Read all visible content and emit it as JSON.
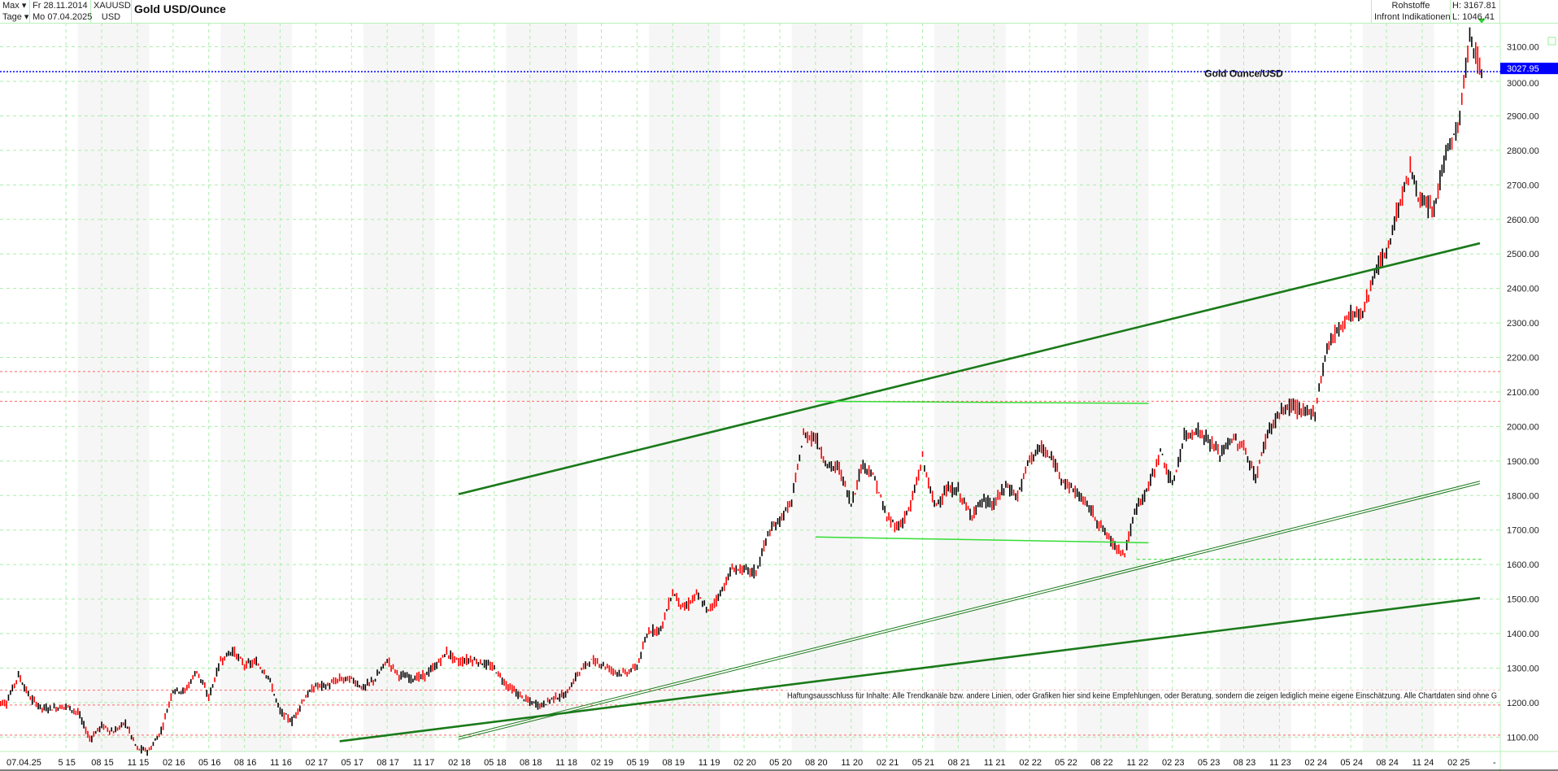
{
  "header": {
    "range_select": "Max ▾",
    "interval_select": "Tage ▾",
    "start_date": "Fr 28.11.2014",
    "end_date": "Mo 07.04.2025",
    "symbol": "XAUUSD",
    "currency": "USD",
    "title": "Gold USD/Ounce",
    "category": "Rohstoffe",
    "source": "Infront Indikationen",
    "high": "H: 3167.81",
    "low": "L: 1046.41"
  },
  "colors": {
    "up": "#000000",
    "down": "#ff0000",
    "grid": "#aaeeaa",
    "trend": "#1a7a1a",
    "level": "#33dd33",
    "resistance": "#ff6666",
    "last_price": "#0000ff"
  },
  "chart_data": {
    "type": "bar",
    "title": "Gold USD/Ounce",
    "xlabel": "",
    "ylabel": "",
    "ylim": [
      1050,
      3180
    ],
    "grid": true,
    "last_price": {
      "value": 3027.95,
      "label": "3027.95"
    },
    "annotation": {
      "text": "Gold Ounce/USD",
      "date": "2023-08",
      "price": 3022
    },
    "disclaimer": "Haftungsausschluss für Inhalte: Alle Trendkanäle bzw. andere Linien, oder Grafiken hier sind keine Empfehlungen, oder Beratung, sondern die zeigen lediglich meine eigene Einschätzung. Alle Chartdaten sind ohne G",
    "y_ticks": [
      "1100.00",
      "1200.00",
      "1300.00",
      "1400.00",
      "1500.00",
      "1600.00",
      "1700.00",
      "1800.00",
      "1900.00",
      "2000.00",
      "2100.00",
      "2200.00",
      "2300.00",
      "2400.00",
      "2500.00",
      "2600.00",
      "2700.00",
      "2800.00",
      "2900.00",
      "3000.00",
      "3100.00"
    ],
    "x_first_label": "07.04.25",
    "x_ticks": [
      "5 15",
      "08 15",
      "11 15",
      "02 16",
      "05 16",
      "08 16",
      "11 16",
      "02 17",
      "05 17",
      "08 17",
      "11 17",
      "02 18",
      "05 18",
      "08 18",
      "11 18",
      "02 19",
      "05 19",
      "08 19",
      "11 19",
      "02 20",
      "05 20",
      "08 20",
      "11 20",
      "02 21",
      "05 21",
      "08 21",
      "11 21",
      "02 22",
      "05 22",
      "08 22",
      "11 22",
      "02 23",
      "05 23",
      "08 23",
      "11 23",
      "02 24",
      "05 24",
      "08 24",
      "11 24",
      "02 25"
    ],
    "x_last_label": "-",
    "start_month": "2014-12",
    "monthly_close": [
      1200,
      1280,
      1213,
      1183,
      1184,
      1190,
      1172,
      1095,
      1133,
      1115,
      1142,
      1065,
      1061,
      1118,
      1238,
      1233,
      1293,
      1215,
      1322,
      1351,
      1309,
      1316,
      1277,
      1173,
      1146,
      1211,
      1249,
      1249,
      1268,
      1268,
      1242,
      1269,
      1322,
      1280,
      1271,
      1275,
      1303,
      1345,
      1318,
      1325,
      1315,
      1299,
      1253,
      1224,
      1201,
      1192,
      1215,
      1222,
      1282,
      1321,
      1313,
      1292,
      1284,
      1305,
      1409,
      1413,
      1520,
      1472,
      1513,
      1464,
      1517,
      1587,
      1585,
      1577,
      1687,
      1730,
      1781,
      1975,
      1968,
      1886,
      1879,
      1776,
      1895,
      1847,
      1734,
      1708,
      1769,
      1907,
      1770,
      1814,
      1814,
      1743,
      1783,
      1774,
      1829,
      1797,
      1909,
      1937,
      1897,
      1837,
      1807,
      1766,
      1711,
      1660,
      1633,
      1768,
      1824,
      1928,
      1827,
      1969,
      1990,
      1962,
      1919,
      1965,
      1940,
      1849,
      1983,
      2036,
      2063,
      2039,
      2044,
      2230,
      2286,
      2327,
      2326,
      2447,
      2503,
      2635,
      2744,
      2643,
      2625,
      2798,
      2858,
      3124,
      3028
    ],
    "trendlines": [
      {
        "style": "thick",
        "from": [
          "2018-02",
          1804
        ],
        "to": [
          "2025-10",
          2583
        ]
      },
      {
        "style": "double",
        "from": [
          "2018-02",
          1097
        ],
        "to": [
          "2025-10",
          1891
        ]
      },
      {
        "style": "thick",
        "from": [
          "2017-04",
          1088
        ],
        "to": [
          "2025-10",
          1530
        ]
      },
      {
        "style": "level",
        "from": [
          "2020-08",
          2073
        ],
        "to": [
          "2022-12",
          2067
        ]
      },
      {
        "style": "level",
        "from": [
          "2020-08",
          1680
        ],
        "to": [
          "2022-12",
          1663
        ]
      }
    ],
    "horizontal_levels": {
      "red_dashed": [
        2159,
        2073,
        1236,
        1193,
        1106
      ],
      "green_dashed": [
        1615
      ]
    }
  }
}
